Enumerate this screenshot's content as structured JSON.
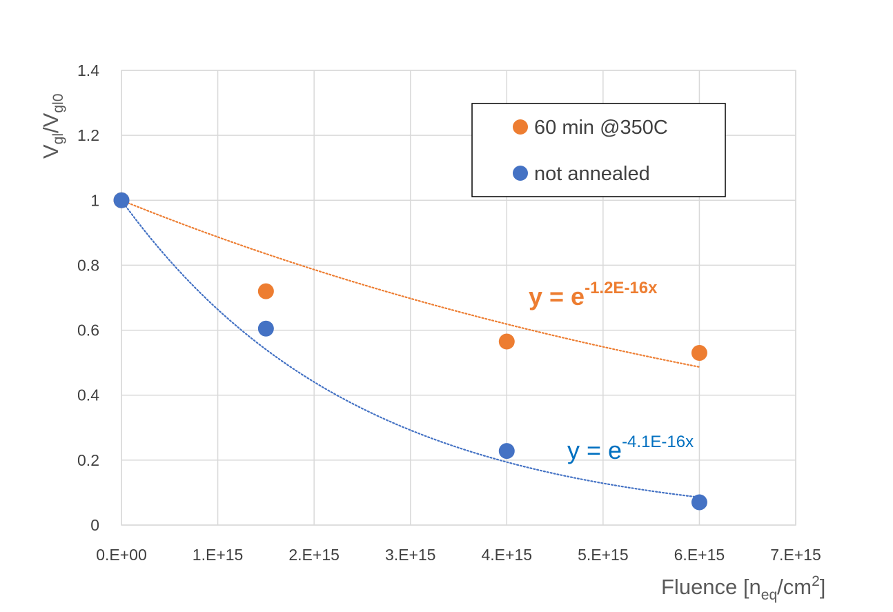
{
  "chart_data": {
    "type": "scatter",
    "title": "",
    "xlabel": {
      "main": "Fluence [n",
      "sub": "eq",
      "mid": "/cm",
      "sup": "2",
      "end": "]"
    },
    "ylabel": {
      "v1": "V",
      "s1": "gl",
      "slash": "/V",
      "s2": "gl0"
    },
    "xlim": [
      0,
      7000000000000000.0
    ],
    "ylim": [
      0,
      1.4
    ],
    "xticks": [
      0,
      1000000000000000.0,
      2000000000000000.0,
      3000000000000000.0,
      4000000000000000.0,
      5000000000000000.0,
      6000000000000000.0,
      7000000000000000.0
    ],
    "xtick_labels": [
      "0.E+00",
      "1.E+15",
      "2.E+15",
      "3.E+15",
      "4.E+15",
      "5.E+15",
      "6.E+15",
      "7.E+15"
    ],
    "yticks": [
      0,
      0.2,
      0.4,
      0.6,
      0.8,
      1,
      1.2,
      1.4
    ],
    "ytick_labels": [
      "0",
      "0.2",
      "0.4",
      "0.6",
      "0.8",
      "1",
      "1.2",
      "1.4"
    ],
    "grid": true,
    "legend_position": "top-right",
    "series": [
      {
        "name": "60 min @350C",
        "color": "#ED7D31",
        "x": [
          0,
          1500000000000000.0,
          4000000000000000.0,
          6000000000000000.0
        ],
        "y": [
          1.0,
          0.72,
          0.565,
          0.53
        ],
        "trend": {
          "type": "exponential",
          "k": 1.2e-16,
          "x_range": [
            0,
            6000000000000000.0
          ]
        },
        "equation": {
          "base": "y = e",
          "exponent": "-1.2E-16x"
        }
      },
      {
        "name": "not annealed",
        "color": "#4472C4",
        "x": [
          0,
          1500000000000000.0,
          4000000000000000.0,
          6000000000000000.0
        ],
        "y": [
          1.0,
          0.605,
          0.228,
          0.07
        ],
        "trend": {
          "type": "exponential",
          "k": 4.1e-16,
          "x_range": [
            0,
            6000000000000000.0
          ]
        },
        "equation": {
          "base": "y = e",
          "exponent": "-4.1E-16x"
        }
      }
    ]
  }
}
